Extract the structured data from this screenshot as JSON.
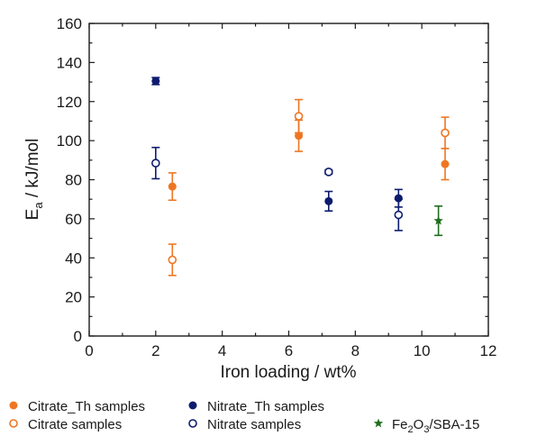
{
  "chart_data": {
    "type": "scatter",
    "title": "",
    "xlabel": "Iron loading / wt%",
    "ylabel": {
      "main": "E",
      "sub": "a",
      "rest": " / kJ/mol"
    },
    "xlim": [
      0,
      12
    ],
    "ylim": [
      0,
      160
    ],
    "xticks": [
      0,
      2,
      4,
      6,
      8,
      10,
      12
    ],
    "yticks": [
      0,
      20,
      40,
      60,
      80,
      100,
      120,
      140,
      160
    ],
    "grid": false,
    "legend_position": "bottom",
    "series": [
      {
        "name": "Citrate_Th samples",
        "marker": "filled-circle",
        "color": "#EE7623",
        "points": [
          {
            "x": 2.5,
            "y": 76.5,
            "err": 7
          },
          {
            "x": 6.3,
            "y": 102.5,
            "err": 8
          },
          {
            "x": 10.7,
            "y": 88,
            "err": 8
          }
        ]
      },
      {
        "name": "Nitrate_Th samples",
        "marker": "filled-circle",
        "color": "#0D1B6E",
        "points": [
          {
            "x": 2.0,
            "y": 130.5,
            "err": 1.8
          },
          {
            "x": 7.2,
            "y": 69,
            "err": 5
          },
          {
            "x": 9.3,
            "y": 70.5,
            "err": 4.5
          }
        ]
      },
      {
        "name": "Citrate samples",
        "marker": "open-circle",
        "color": "#EE7623",
        "points": [
          {
            "x": 2.5,
            "y": 39,
            "err": 8
          },
          {
            "x": 6.3,
            "y": 112.5,
            "err": 8.5
          },
          {
            "x": 10.7,
            "y": 104,
            "err": 8
          }
        ]
      },
      {
        "name": "Nitrate samples",
        "marker": "open-circle",
        "color": "#0D1B6E",
        "points": [
          {
            "x": 2.0,
            "y": 88.5,
            "err": 8
          },
          {
            "x": 7.2,
            "y": 84,
            "err": 1
          },
          {
            "x": 9.3,
            "y": 62,
            "err": 8
          }
        ]
      },
      {
        "name": {
          "main": "Fe",
          "sub1": "2",
          "mid": "O",
          "sub2": "3",
          "rest": "/SBA-15"
        },
        "marker": "star",
        "color": "#1E6E1E",
        "points": [
          {
            "x": 10.5,
            "y": 59,
            "err": 7.5
          }
        ]
      }
    ]
  }
}
